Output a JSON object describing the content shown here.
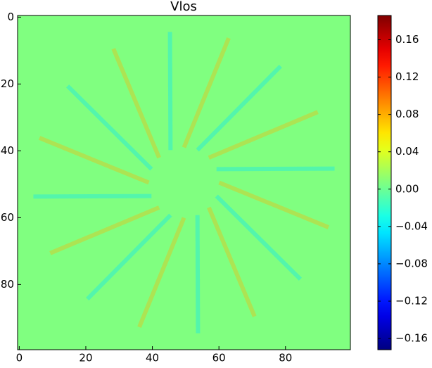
{
  "chart_data": {
    "type": "image",
    "title": "Vlos",
    "colormap": "jet",
    "xlim": [
      -0.5,
      99.5
    ],
    "xticks": [
      0,
      20,
      40,
      60,
      80
    ],
    "ylim": [
      99.5,
      -0.5
    ],
    "yticks": [
      0,
      20,
      40,
      60,
      80
    ],
    "clim": [
      -0.172,
      0.186
    ],
    "cticks": [
      {
        "value": -0.16,
        "label": "−0.16"
      },
      {
        "value": -0.12,
        "label": "−0.12"
      },
      {
        "value": -0.08,
        "label": "−0.08"
      },
      {
        "value": -0.04,
        "label": "−0.04"
      },
      {
        "value": 0,
        "label": "0.00"
      },
      0.04,
      0.08,
      0.12,
      0.16
    ]
  }
}
